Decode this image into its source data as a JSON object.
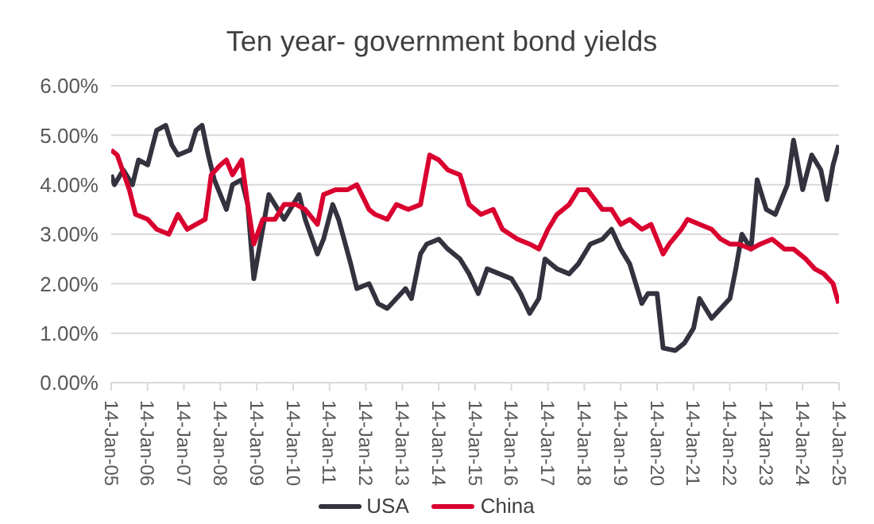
{
  "chart_data": {
    "type": "line",
    "title": "Ten year- government bond yields",
    "xlim": [
      "2005-01-14",
      "2025-01-14"
    ],
    "xticks": [
      {
        "value": "2005-01-14",
        "label": "14-Jan-05"
      },
      {
        "value": "2006-01-14",
        "label": "14-Jan-06"
      },
      {
        "value": "2007-01-14",
        "label": "14-Jan-07"
      },
      {
        "value": "2008-01-14",
        "label": "14-Jan-08"
      },
      {
        "value": "2009-01-14",
        "label": "14-Jan-09"
      },
      {
        "value": "2010-01-14",
        "label": "14-Jan-10"
      },
      {
        "value": "2011-01-14",
        "label": "14-Jan-11"
      },
      {
        "value": "2012-01-14",
        "label": "14-Jan-12"
      },
      {
        "value": "2013-01-14",
        "label": "14-Jan-13"
      },
      {
        "value": "2014-01-14",
        "label": "14-Jan-14"
      },
      {
        "value": "2015-01-14",
        "label": "14-Jan-15"
      },
      {
        "value": "2016-01-14",
        "label": "14-Jan-16"
      },
      {
        "value": "2017-01-14",
        "label": "14-Jan-17"
      },
      {
        "value": "2018-01-14",
        "label": "14-Jan-18"
      },
      {
        "value": "2019-01-14",
        "label": "14-Jan-19"
      },
      {
        "value": "2020-01-14",
        "label": "14-Jan-20"
      },
      {
        "value": "2021-01-14",
        "label": "14-Jan-21"
      },
      {
        "value": "2022-01-14",
        "label": "14-Jan-22"
      },
      {
        "value": "2023-01-14",
        "label": "14-Jan-23"
      },
      {
        "value": "2024-01-14",
        "label": "14-Jan-24"
      },
      {
        "value": "2025-01-14",
        "label": "14-Jan-25"
      }
    ],
    "ylim": [
      0,
      6
    ],
    "yticks": [
      {
        "value": 0,
        "label": "0.00%"
      },
      {
        "value": 1,
        "label": "1.00%"
      },
      {
        "value": 2,
        "label": "2.00%"
      },
      {
        "value": 3,
        "label": "3.00%"
      },
      {
        "value": 4,
        "label": "4.00%"
      },
      {
        "value": 5,
        "label": "5.00%"
      },
      {
        "value": 6,
        "label": "6.00%"
      }
    ],
    "grid": "y",
    "legend": "bottom",
    "marker": "none",
    "line_style": "solid",
    "series": [
      {
        "name": "USA",
        "color": "#33333f",
        "x": [
          "2005-01-14",
          "2005-02",
          "2005-05",
          "2005-08",
          "2005-10",
          "2006-01",
          "2006-04",
          "2006-07",
          "2006-09",
          "2006-11",
          "2007-03",
          "2007-05",
          "2007-07",
          "2007-09",
          "2007-11",
          "2008-03",
          "2008-05",
          "2008-08",
          "2008-10",
          "2008-12",
          "2009-02",
          "2009-05",
          "2009-08",
          "2009-10",
          "2010-03",
          "2010-05",
          "2010-09",
          "2010-11",
          "2011-02",
          "2011-04",
          "2011-08",
          "2011-10",
          "2012-02",
          "2012-05",
          "2012-08",
          "2012-11",
          "2013-02",
          "2013-04",
          "2013-07",
          "2013-09",
          "2014-01",
          "2014-04",
          "2014-08",
          "2014-11",
          "2015-02",
          "2015-05",
          "2015-09",
          "2016-01",
          "2016-04",
          "2016-07",
          "2016-10",
          "2016-12",
          "2017-04",
          "2017-08",
          "2017-11",
          "2018-03",
          "2018-07",
          "2018-10",
          "2019-01",
          "2019-04",
          "2019-08",
          "2019-10",
          "2020-01",
          "2020-03",
          "2020-07",
          "2020-10",
          "2021-01",
          "2021-03",
          "2021-07",
          "2021-10",
          "2022-01",
          "2022-03",
          "2022-05",
          "2022-08",
          "2022-10",
          "2023-01",
          "2023-04",
          "2023-08",
          "2023-10",
          "2024-01",
          "2024-04",
          "2024-07",
          "2024-09",
          "2024-11",
          "2025-01-10"
        ],
        "values": [
          4.2,
          4.0,
          4.3,
          4.0,
          4.5,
          4.4,
          5.1,
          5.2,
          4.8,
          4.6,
          4.7,
          5.1,
          5.2,
          4.6,
          4.1,
          3.5,
          4.0,
          4.1,
          3.6,
          2.1,
          2.8,
          3.8,
          3.5,
          3.3,
          3.8,
          3.3,
          2.6,
          2.9,
          3.6,
          3.3,
          2.4,
          1.9,
          2.0,
          1.6,
          1.5,
          1.7,
          1.9,
          1.7,
          2.6,
          2.8,
          2.9,
          2.7,
          2.5,
          2.2,
          1.8,
          2.3,
          2.2,
          2.1,
          1.8,
          1.4,
          1.7,
          2.5,
          2.3,
          2.2,
          2.4,
          2.8,
          2.9,
          3.1,
          2.7,
          2.4,
          1.6,
          1.8,
          1.8,
          0.7,
          0.65,
          0.8,
          1.1,
          1.7,
          1.3,
          1.5,
          1.7,
          2.3,
          3.0,
          2.7,
          4.1,
          3.5,
          3.4,
          4.0,
          4.9,
          3.9,
          4.6,
          4.3,
          3.7,
          4.4,
          4.8
        ]
      },
      {
        "name": "China",
        "color": "#d9002f",
        "x": [
          "2005-01-14",
          "2005-03",
          "2005-07",
          "2005-09",
          "2006-01",
          "2006-04",
          "2006-08",
          "2006-11",
          "2007-02",
          "2007-05",
          "2007-08",
          "2007-10",
          "2008-01",
          "2008-03",
          "2008-05",
          "2008-08",
          "2008-10",
          "2008-12",
          "2009-03",
          "2009-07",
          "2009-10",
          "2010-02",
          "2010-05",
          "2010-09",
          "2010-11",
          "2011-03",
          "2011-07",
          "2011-10",
          "2012-02",
          "2012-04",
          "2012-08",
          "2012-11",
          "2013-03",
          "2013-07",
          "2013-10",
          "2014-01",
          "2014-04",
          "2014-08",
          "2014-11",
          "2015-03",
          "2015-07",
          "2015-10",
          "2016-03",
          "2016-07",
          "2016-10",
          "2017-01",
          "2017-04",
          "2017-08",
          "2017-11",
          "2018-02",
          "2018-07",
          "2018-10",
          "2019-01",
          "2019-04",
          "2019-08",
          "2019-11",
          "2020-03",
          "2020-05",
          "2020-09",
          "2020-11",
          "2021-03",
          "2021-07",
          "2021-10",
          "2022-01",
          "2022-04",
          "2022-08",
          "2022-11",
          "2023-03",
          "2023-07",
          "2023-10",
          "2024-02",
          "2024-05",
          "2024-08",
          "2024-11",
          "2025-01-10"
        ],
        "values": [
          4.7,
          4.6,
          3.9,
          3.4,
          3.3,
          3.1,
          3.0,
          3.4,
          3.1,
          3.2,
          3.3,
          4.2,
          4.4,
          4.5,
          4.2,
          4.5,
          3.6,
          2.8,
          3.3,
          3.3,
          3.6,
          3.6,
          3.5,
          3.2,
          3.8,
          3.9,
          3.9,
          4.0,
          3.5,
          3.4,
          3.3,
          3.6,
          3.5,
          3.6,
          4.6,
          4.5,
          4.3,
          4.2,
          3.6,
          3.4,
          3.5,
          3.1,
          2.9,
          2.8,
          2.7,
          3.1,
          3.4,
          3.6,
          3.9,
          3.9,
          3.5,
          3.5,
          3.2,
          3.3,
          3.1,
          3.2,
          2.6,
          2.8,
          3.1,
          3.3,
          3.2,
          3.1,
          2.9,
          2.8,
          2.8,
          2.7,
          2.8,
          2.9,
          2.7,
          2.7,
          2.5,
          2.3,
          2.2,
          2.0,
          1.6
        ]
      }
    ]
  }
}
